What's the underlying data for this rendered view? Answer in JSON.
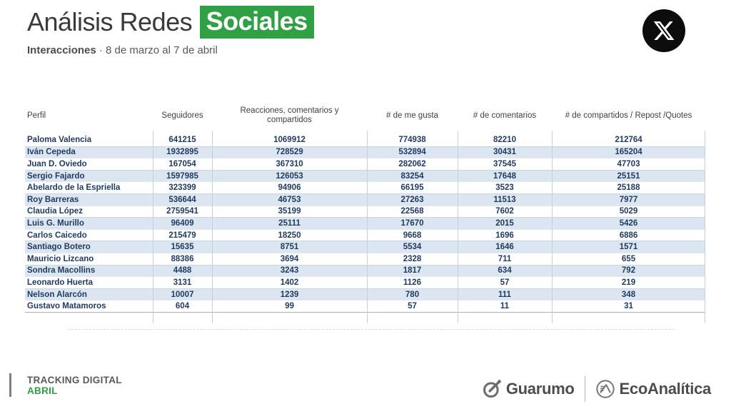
{
  "header": {
    "title_plain": "Análisis Redes",
    "title_highlight": "Sociales",
    "subtitle_bold": "Interacciones",
    "subtitle_rest": " · 8 de marzo al 7 de abril",
    "platform_icon": "x-twitter-icon"
  },
  "colors": {
    "accent_green": "#2fa044",
    "row_alt": "#dce6f1",
    "table_text": "#1f3a5f",
    "header_text": "#404040"
  },
  "table": {
    "columns": [
      "Perfil",
      "Seguidores",
      "Reacciones, comentarios y compartidos",
      "# de me gusta",
      "# de comentarios",
      "# de compartidos / Repost /Quotes"
    ],
    "rows": [
      [
        "Paloma Valencia",
        "641215",
        "1069912",
        "774938",
        "82210",
        "212764"
      ],
      [
        "Iván Cepeda",
        "1932895",
        "728529",
        "532894",
        "30431",
        "165204"
      ],
      [
        "Juan D. Oviedo",
        "167054",
        "367310",
        "282062",
        "37545",
        "47703"
      ],
      [
        "Sergio Fajardo",
        "1597985",
        "126053",
        "83254",
        "17648",
        "25151"
      ],
      [
        "Abelardo de la Espriella",
        "323399",
        "94906",
        "66195",
        "3523",
        "25188"
      ],
      [
        "Roy Barreras",
        "536644",
        "46753",
        "27263",
        "11513",
        "7977"
      ],
      [
        "Claudia López",
        "2759541",
        "35199",
        "22568",
        "7602",
        "5029"
      ],
      [
        "Luis G. Murillo",
        "96409",
        "25111",
        "17670",
        "2015",
        "5426"
      ],
      [
        "Carlos Caicedo",
        "215479",
        "18250",
        "9668",
        "1696",
        "6886"
      ],
      [
        "Santiago Botero",
        "15635",
        "8751",
        "5534",
        "1646",
        "1571"
      ],
      [
        "Mauricio Lizcano",
        "88386",
        "3694",
        "2328",
        "711",
        "655"
      ],
      [
        "Sondra Macollins",
        "4488",
        "3243",
        "1817",
        "634",
        "792"
      ],
      [
        "Leonardo Huerta",
        "3131",
        "1402",
        "1126",
        "57",
        "219"
      ],
      [
        "Nelson Alarcón",
        "10007",
        "1239",
        "780",
        "111",
        "348"
      ],
      [
        "Gustavo Matamoros",
        "604",
        "99",
        "57",
        "11",
        "31"
      ]
    ]
  },
  "footer": {
    "tracking_label": "TRACKING DIGITAL",
    "month_label": "ABRIL",
    "logos": [
      {
        "name": "Guarumo",
        "icon": "guarumo-logo-icon"
      },
      {
        "name": "EcoAnalítica",
        "icon": "ecoanalitica-logo-icon"
      }
    ]
  }
}
